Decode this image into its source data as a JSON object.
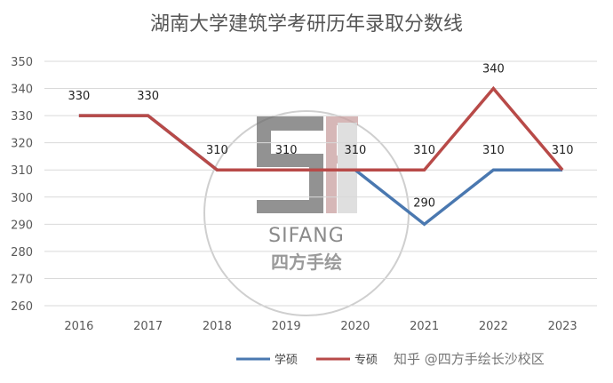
{
  "chart_data": {
    "type": "line",
    "title": "湖南大学建筑学考研历年录取分数线",
    "categories": [
      "2016",
      "2017",
      "2018",
      "2019",
      "2020",
      "2021",
      "2022",
      "2023"
    ],
    "y_ticks": [
      "260",
      "270",
      "280",
      "290",
      "300",
      "310",
      "320",
      "330",
      "340",
      "350"
    ],
    "ylim": [
      260,
      350
    ],
    "grid": true,
    "legend_position": "bottom",
    "series": [
      {
        "name": "学硕",
        "color": "#4a78b0",
        "values": [
          330,
          330,
          310,
          310,
          310,
          290,
          310,
          310
        ]
      },
      {
        "name": "专硕",
        "color": "#b84a48",
        "values": [
          330,
          330,
          310,
          310,
          310,
          310,
          340,
          310
        ]
      }
    ],
    "data_labels": [
      {
        "text": "330",
        "series": 1,
        "index": 0
      },
      {
        "text": "330",
        "series": 1,
        "index": 1
      },
      {
        "text": "310",
        "series": 1,
        "index": 2
      },
      {
        "text": "310",
        "series": 1,
        "index": 3
      },
      {
        "text": "310",
        "series": 1,
        "index": 4
      },
      {
        "text": "310",
        "series": 1,
        "index": 5
      },
      {
        "text": "290",
        "series": 0,
        "index": 5
      },
      {
        "text": "340",
        "series": 1,
        "index": 6
      },
      {
        "text": "310",
        "series": 0,
        "index": 6
      },
      {
        "text": "310",
        "series": 1,
        "index": 7
      }
    ]
  },
  "watermark": {
    "text": "SIFANG",
    "subtext": "四方手绘"
  },
  "credit": "知乎 @四方手绘长沙校区"
}
